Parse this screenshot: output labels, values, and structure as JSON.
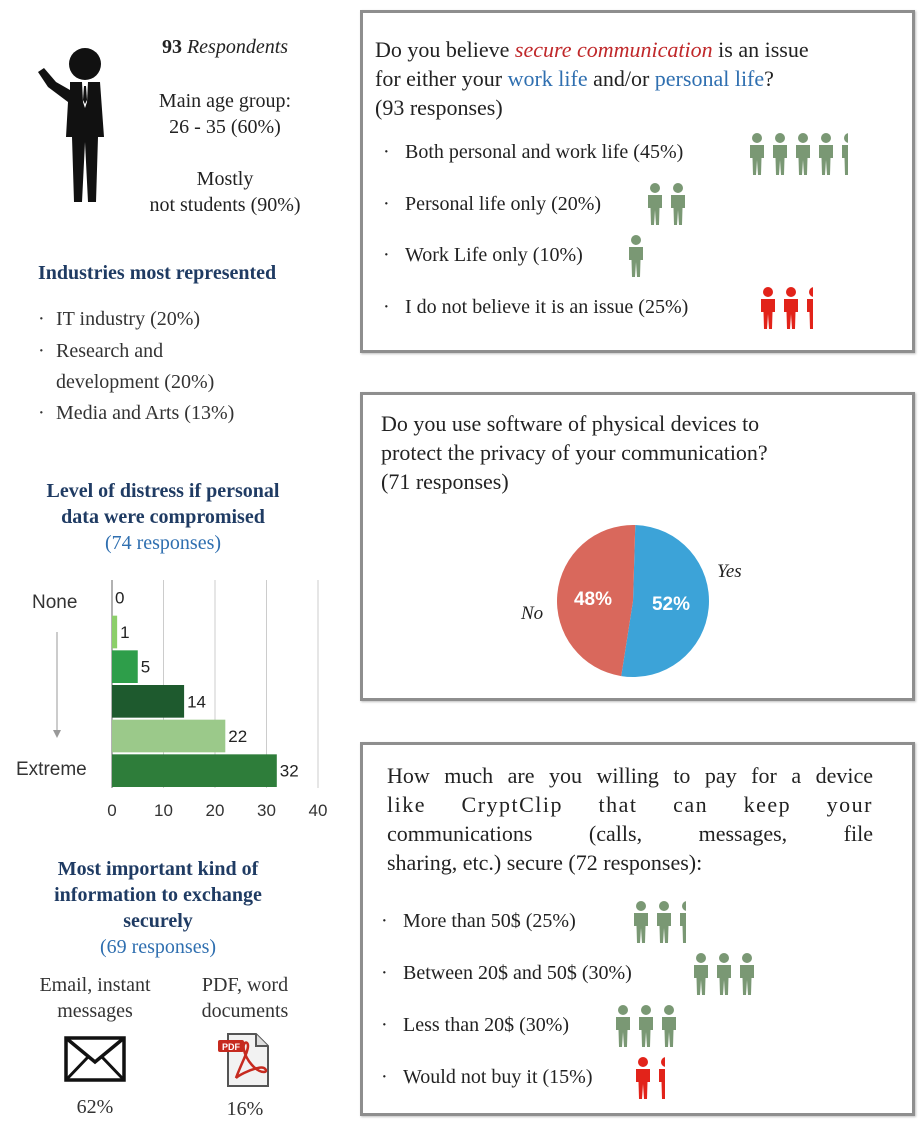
{
  "respondents": {
    "count": "93",
    "label": "Respondents",
    "age_line1": "Main age group:",
    "age_line2": "26 - 35 (60%)",
    "students_line1": "Mostly",
    "students_line2": "not students (90%)"
  },
  "industries": {
    "title": "Industries most represented",
    "items": [
      {
        "line1": "IT industry (20%)",
        "line2": ""
      },
      {
        "line1": "Research and",
        "line2": "development (20%)"
      },
      {
        "line1": "Media and Arts (13%)",
        "line2": ""
      }
    ]
  },
  "distress": {
    "title_line1": "Level of distress if personal",
    "title_line2": "data were compromised",
    "responses": "(74 responses)",
    "label_top": "None",
    "label_bottom": "Extreme"
  },
  "chart_data": {
    "type": "bar",
    "orientation": "horizontal",
    "categories": [
      "1",
      "2",
      "3",
      "4",
      "5",
      "6"
    ],
    "values": [
      0,
      1,
      5,
      14,
      22,
      32
    ],
    "xlim": [
      0,
      40
    ],
    "xticks": [
      0,
      10,
      20,
      30,
      40
    ],
    "colors": [
      "#9fd08a",
      "#8ccf6a",
      "#2e9e4a",
      "#1e5a2e",
      "#9bc98a",
      "#2e7d3a"
    ],
    "grid": true
  },
  "important_info": {
    "title_line1": "Most important kind of",
    "title_line2": "information to exchange",
    "title_line3": "securely",
    "responses": "(69 responses)",
    "email_line1": "Email, instant",
    "email_line2": "messages",
    "email_pct": "62%",
    "pdf_line1": "PDF, word",
    "pdf_line2": "documents",
    "pdf_pct": "16%",
    "pdf_badge": "PDF"
  },
  "q1": {
    "pre": "Do you believe ",
    "highlight": "secure communication",
    "mid": " is an issue",
    "line2_pre": "for either your ",
    "work": "work life",
    "and": " and/or ",
    "personal": "personal life",
    "q": "?",
    "responses": "(93 responses)",
    "options": [
      {
        "label": "Both personal and work life (45%)",
        "value": 45,
        "color": "#7a9874"
      },
      {
        "label": "Personal life only (20%)",
        "value": 20,
        "color": "#7a9874"
      },
      {
        "label": "Work Life only (10%)",
        "value": 10,
        "color": "#7a9874"
      },
      {
        "label": "I do not believe it is an issue (25%)",
        "value": 25,
        "color": "#e2231a"
      }
    ]
  },
  "q2": {
    "line1": "Do you use software of physical devices to",
    "line2": "protect the privacy of your communication?",
    "line3": "(71 responses)",
    "pie": {
      "yes_label": "Yes",
      "no_label": "No",
      "yes_pct": "52%",
      "no_pct": "48%",
      "yes_value": 52,
      "no_value": 48,
      "yes_color": "#3ca3d8",
      "no_color": "#d9685c"
    }
  },
  "q3": {
    "line1": "How much are you willing to pay for a device",
    "line2": "like CryptClip that can keep your",
    "line3": "communications (calls, messages, file",
    "line4": "sharing, etc.) secure (72 responses):",
    "options": [
      {
        "label": "More than 50$ (25%)",
        "value": 25,
        "color": "#7a9874"
      },
      {
        "label": "Between 20$ and 50$ (30%)",
        "value": 30,
        "color": "#7a9874"
      },
      {
        "label": "Less than 20$ (30%)",
        "value": 30,
        "color": "#7a9874"
      },
      {
        "label": "Would not buy it (15%)",
        "value": 15,
        "color": "#e2231a"
      }
    ]
  }
}
